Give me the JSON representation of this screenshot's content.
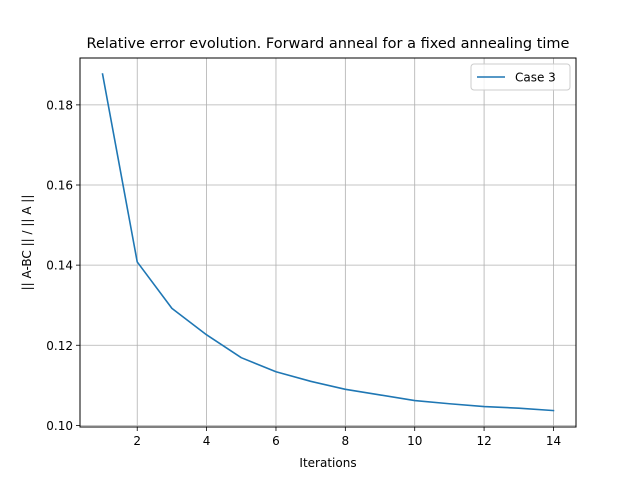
{
  "chart_data": {
    "type": "line",
    "title": "Relative error evolution. Forward anneal for a fixed annealing time",
    "xlabel": "Iterations",
    "ylabel": "|| A-BC || / || A ||",
    "xlim": [
      0.35,
      14.65
    ],
    "ylim": [
      0.0996,
      0.1917
    ],
    "xticks": [
      2,
      4,
      6,
      8,
      10,
      12,
      14
    ],
    "yticks": [
      0.1,
      0.12,
      0.14,
      0.16,
      0.18
    ],
    "ytick_labels": [
      "0.10",
      "0.12",
      "0.14",
      "0.16",
      "0.18"
    ],
    "grid": true,
    "legend_position": "top-right",
    "series": [
      {
        "name": "Case 3",
        "color": "#1f77b4",
        "x": [
          1,
          2,
          3,
          4,
          5,
          6,
          7,
          8,
          9,
          10,
          11,
          12,
          13,
          14
        ],
        "y": [
          0.1877,
          0.1408,
          0.1292,
          0.1226,
          0.1169,
          0.1134,
          0.111,
          0.109,
          0.1076,
          0.1062,
          0.1054,
          0.1047,
          0.1043,
          0.1037
        ]
      }
    ]
  }
}
